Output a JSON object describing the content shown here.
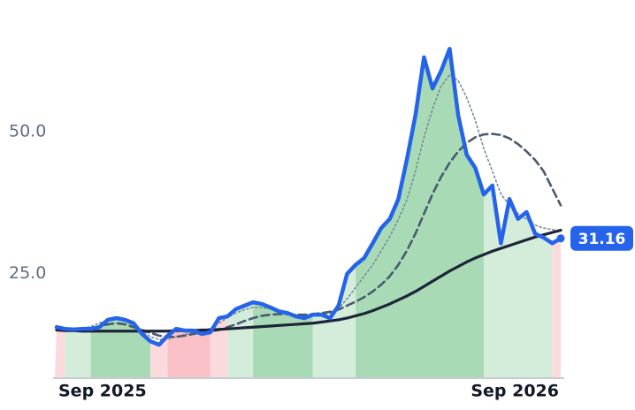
{
  "chart_data": {
    "type": "line",
    "categories": [
      "Sep 2025",
      null,
      null,
      null,
      null,
      null,
      null,
      null,
      null,
      null,
      null,
      null,
      null,
      null,
      null,
      null,
      null,
      null,
      null,
      null,
      null,
      null,
      null,
      null,
      null,
      null,
      null,
      null,
      null,
      null,
      null,
      null,
      null,
      null,
      null,
      null,
      null,
      null,
      null,
      null,
      null,
      null,
      null,
      null,
      null,
      null,
      null,
      null,
      null,
      null,
      null,
      null,
      null,
      null,
      null,
      null,
      null,
      null,
      null,
      "Sep 2026"
    ],
    "series": [
      {
        "color": "#7a8a99",
        "style": "dotted",
        "values": [
          15.5,
          15.3,
          15.2,
          15.3,
          15.6,
          16.2,
          16.8,
          16.9,
          16.6,
          15.8,
          14.8,
          13.8,
          13.3,
          13.4,
          13.8,
          14.2,
          14.6,
          14.8,
          15.3,
          16.2,
          17.2,
          18.0,
          18.6,
          19.0,
          19.0,
          18.7,
          18.4,
          18.0,
          17.7,
          17.6,
          17.6,
          17.7,
          18.0,
          18.8,
          20.5,
          22.5,
          24.5,
          26.5,
          29.0,
          31.5,
          34.5,
          38.0,
          43.0,
          49.0,
          54.0,
          58.0,
          60.0,
          59.0,
          56.0,
          52.0,
          47.0,
          43.0,
          39.0,
          37.0,
          35.5,
          34.5,
          33.5,
          33.0,
          32.7,
          32.5
        ]
      },
      {
        "color": "#4a5a6e",
        "style": "dashed",
        "values": [
          15.2,
          15.0,
          14.9,
          15.0,
          15.2,
          15.6,
          16.0,
          16.2,
          16.0,
          15.5,
          15.0,
          14.5,
          14.0,
          13.8,
          13.8,
          14.0,
          14.3,
          14.6,
          14.8,
          15.0,
          15.5,
          16.0,
          16.6,
          17.1,
          17.5,
          17.7,
          17.8,
          17.8,
          17.7,
          17.7,
          17.8,
          18.0,
          18.2,
          18.6,
          19.3,
          20.0,
          20.8,
          21.8,
          23.0,
          24.5,
          26.5,
          29.0,
          32.0,
          35.5,
          39.0,
          42.0,
          44.5,
          46.5,
          48.0,
          49.0,
          49.5,
          49.6,
          49.4,
          48.8,
          47.8,
          46.5,
          45.0,
          43.0,
          40.0,
          37.0
        ]
      },
      {
        "color": "#1e2438",
        "style": "solid",
        "values": [
          15.0,
          14.9,
          14.9,
          14.8,
          14.8,
          14.8,
          14.8,
          14.8,
          14.8,
          14.8,
          14.8,
          14.8,
          14.8,
          14.8,
          14.9,
          14.9,
          14.9,
          15.0,
          15.0,
          15.1,
          15.2,
          15.3,
          15.4,
          15.5,
          15.6,
          15.7,
          15.8,
          15.9,
          16.0,
          16.1,
          16.2,
          16.4,
          16.6,
          16.8,
          17.1,
          17.5,
          17.9,
          18.4,
          19.0,
          19.6,
          20.3,
          21.0,
          21.8,
          22.7,
          23.6,
          24.5,
          25.4,
          26.2,
          27.0,
          27.7,
          28.3,
          28.9,
          29.4,
          29.9,
          30.4,
          30.9,
          31.4,
          31.8,
          32.2,
          32.6
        ]
      },
      {
        "color": "#2563eb",
        "style": "price",
        "values": [
          15.5,
          15.2,
          15.1,
          15.2,
          15.2,
          15.5,
          16.8,
          17.1,
          16.8,
          16.2,
          14.3,
          13.0,
          12.4,
          14.0,
          15.2,
          14.9,
          14.9,
          14.3,
          14.6,
          17.1,
          17.4,
          18.7,
          19.3,
          19.9,
          19.6,
          19.0,
          18.3,
          18.0,
          17.4,
          17.1,
          17.7,
          17.7,
          17.1,
          19.3,
          24.9,
          26.5,
          27.7,
          30.3,
          33.0,
          34.6,
          38.1,
          45.1,
          52.9,
          63.1,
          57.6,
          60.7,
          64.6,
          52.9,
          45.9,
          43.6,
          38.9,
          40.5,
          30.3,
          38.1,
          34.6,
          35.8,
          32.0,
          31.3,
          30.3,
          31.16
        ]
      }
    ],
    "bands": [
      {
        "start": 0,
        "end": 1,
        "color": "#fadadd"
      },
      {
        "start": 1,
        "end": 4,
        "color": "#d4eddb"
      },
      {
        "start": 4,
        "end": 11,
        "color": "#a8dbb5"
      },
      {
        "start": 11,
        "end": 13,
        "color": "#fadadd"
      },
      {
        "start": 13,
        "end": 18,
        "color": "#f9c0c8"
      },
      {
        "start": 18,
        "end": 20,
        "color": "#fadadd"
      },
      {
        "start": 20,
        "end": 23,
        "color": "#d4eddb"
      },
      {
        "start": 23,
        "end": 30,
        "color": "#a8dbb5"
      },
      {
        "start": 30,
        "end": 35,
        "color": "#d4eddb"
      },
      {
        "start": 35,
        "end": 50,
        "color": "#a8dbb5"
      },
      {
        "start": 50,
        "end": 58,
        "color": "#d4eddb"
      },
      {
        "start": 58,
        "end": 59,
        "color": "#fadadd"
      }
    ],
    "ylim": [
      6.5,
      70
    ],
    "yticks": [
      {
        "value": 25,
        "label": "25.0"
      },
      {
        "value": 50,
        "label": "50.0"
      }
    ],
    "grid": false
  }
}
